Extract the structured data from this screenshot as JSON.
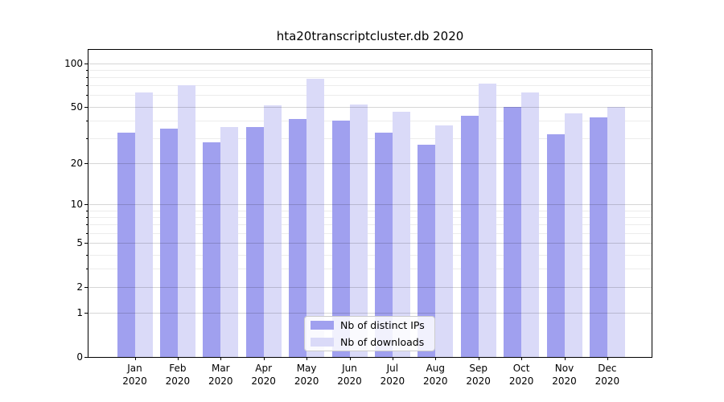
{
  "chart_data": {
    "type": "bar",
    "title": "hta20transcriptcluster.db 2020",
    "categories": [
      "Jan 2020",
      "Feb 2020",
      "Mar 2020",
      "Apr 2020",
      "May 2020",
      "Jun 2020",
      "Jul 2020",
      "Aug 2020",
      "Sep 2020",
      "Oct 2020",
      "Nov 2020",
      "Dec 2020"
    ],
    "series": [
      {
        "name": "Nb of distinct IPs",
        "color": "#a0a0ef",
        "values": [
          33,
          35,
          28,
          36,
          41,
          40,
          33,
          27,
          43,
          50,
          32,
          42
        ]
      },
      {
        "name": "Nb of downloads",
        "color": "#dadaf8",
        "values": [
          63,
          70,
          36,
          51,
          78,
          52,
          46,
          37,
          72,
          63,
          45,
          50
        ]
      }
    ],
    "y_axis": {
      "scale": "log1p",
      "ticks": [
        100,
        50,
        20,
        10,
        5,
        2,
        1,
        0
      ],
      "minor_ticks": [
        90,
        80,
        70,
        60,
        40,
        30,
        9,
        8,
        7,
        6,
        4,
        3
      ],
      "range": [
        0,
        123
      ]
    },
    "x_axis": {
      "tick_label_lines": 2
    },
    "legend": {
      "location": "inside-bottom-center"
    },
    "grid": true
  },
  "colors": {
    "background": "#ffffff",
    "axis": "#000000",
    "text": "#000000",
    "grid_major": "#d6d6d6",
    "grid_minor": "#ececec",
    "bar_distinct_ips": "#a0a0ef",
    "bar_downloads": "#dadaf8"
  }
}
